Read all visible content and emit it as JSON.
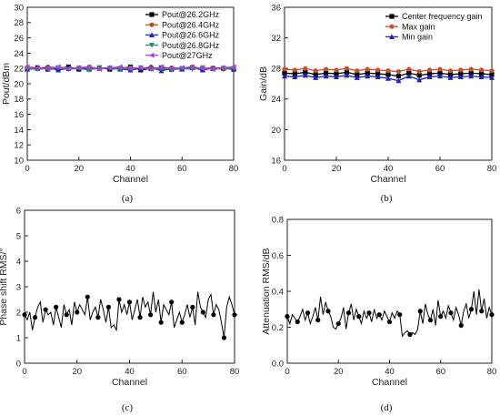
{
  "figure_labels": [
    "(a)",
    "(b)",
    "(c)",
    "(d)"
  ],
  "chart_data": [
    {
      "type": "line",
      "panel": "(a)",
      "xlabel": "Channel",
      "ylabel": "Pout/dBm",
      "xlim": [
        0,
        80
      ],
      "ylim": [
        10,
        30
      ],
      "xticks": [
        0,
        20,
        40,
        60,
        80
      ],
      "yticks": [
        10,
        12,
        14,
        16,
        18,
        20,
        22,
        24,
        26,
        28,
        30
      ],
      "legend_position": "top-right",
      "x": [
        0,
        4,
        8,
        12,
        16,
        20,
        24,
        28,
        32,
        36,
        40,
        44,
        48,
        52,
        56,
        60,
        64,
        68,
        72,
        76,
        80
      ],
      "series": [
        {
          "name": "Pout@26.2GHz",
          "color": "#000000",
          "marker": "square",
          "values": [
            22.0,
            22.1,
            21.9,
            22.0,
            22.2,
            21.9,
            22.0,
            22.1,
            21.9,
            22.0,
            22.2,
            21.8,
            22.0,
            22.1,
            21.9,
            22.0,
            22.1,
            21.9,
            22.0,
            22.0,
            21.9
          ]
        },
        {
          "name": "Pout@26.4GHz",
          "color": "#b5531d",
          "marker": "circle",
          "values": [
            22.1,
            22.0,
            22.2,
            22.1,
            21.9,
            22.1,
            22.2,
            22.0,
            22.1,
            21.9,
            22.1,
            22.0,
            22.2,
            21.9,
            22.1,
            22.0,
            22.2,
            22.0,
            22.1,
            21.9,
            22.1
          ]
        },
        {
          "name": "Pout@26.6GHz",
          "color": "#2323c8",
          "marker": "triangle-up",
          "values": [
            21.9,
            22.0,
            22.1,
            21.8,
            22.0,
            22.1,
            21.9,
            22.0,
            22.1,
            21.9,
            21.8,
            22.0,
            22.1,
            21.7,
            22.0,
            21.9,
            22.1,
            21.8,
            22.0,
            22.1,
            21.9
          ]
        },
        {
          "name": "Pout@26.8GHz",
          "color": "#2a8a6a",
          "marker": "triangle-down",
          "values": [
            22.0,
            21.9,
            22.0,
            22.1,
            21.9,
            22.0,
            21.8,
            22.1,
            22.0,
            21.9,
            22.0,
            22.1,
            21.9,
            22.0,
            21.8,
            22.0,
            21.9,
            22.1,
            21.9,
            22.0,
            22.0
          ]
        },
        {
          "name": "Pout@27GHz",
          "color": "#b040d8",
          "marker": "triangle-left",
          "values": [
            22.2,
            22.1,
            21.9,
            22.2,
            22.0,
            22.1,
            22.2,
            21.9,
            22.1,
            22.2,
            22.0,
            22.1,
            21.9,
            22.2,
            22.0,
            22.1,
            22.2,
            22.0,
            21.9,
            22.1,
            22.2
          ]
        }
      ]
    },
    {
      "type": "line",
      "panel": "(b)",
      "xlabel": "Channel",
      "ylabel": "Gain/dB",
      "xlim": [
        0,
        80
      ],
      "ylim": [
        16,
        36
      ],
      "xticks": [
        0,
        20,
        40,
        60,
        80
      ],
      "yticks": [
        16,
        20,
        24,
        28,
        32,
        36
      ],
      "legend_position": "top-right",
      "x": [
        0,
        4,
        8,
        12,
        16,
        20,
        24,
        28,
        32,
        36,
        40,
        44,
        48,
        52,
        56,
        60,
        64,
        68,
        72,
        76,
        80
      ],
      "series": [
        {
          "name": "Center frequency gain",
          "color": "#000000",
          "marker": "square",
          "values": [
            27.4,
            27.3,
            27.5,
            27.2,
            27.4,
            27.3,
            27.5,
            27.2,
            27.4,
            27.3,
            27.2,
            27.0,
            27.4,
            27.1,
            27.3,
            27.4,
            27.2,
            27.3,
            27.4,
            27.3,
            27.2
          ]
        },
        {
          "name": "Max gain",
          "color": "#c8502a",
          "marker": "circle",
          "values": [
            27.9,
            27.8,
            28.0,
            27.7,
            27.9,
            27.8,
            28.0,
            27.7,
            27.9,
            27.8,
            27.7,
            27.6,
            27.9,
            27.6,
            27.8,
            27.9,
            27.7,
            27.8,
            27.9,
            27.8,
            27.7
          ]
        },
        {
          "name": "Min gain",
          "color": "#2020c0",
          "marker": "triangle-up",
          "values": [
            27.0,
            26.9,
            27.1,
            26.8,
            27.0,
            26.9,
            27.1,
            26.8,
            27.0,
            26.9,
            26.7,
            26.4,
            27.0,
            26.5,
            26.9,
            27.0,
            26.8,
            26.9,
            27.0,
            26.9,
            26.8
          ]
        }
      ]
    },
    {
      "type": "line",
      "panel": "(c)",
      "xlabel": "Channel",
      "ylabel": "Phase shift RMS/°",
      "xlim": [
        0,
        80
      ],
      "ylim": [
        0,
        6
      ],
      "xticks": [
        0,
        20,
        40,
        60,
        80
      ],
      "yticks": [
        0,
        1,
        2,
        3,
        4,
        5,
        6
      ],
      "legend_position": "none",
      "series": [
        {
          "color": "#000000",
          "marker": "circle",
          "x": [
            0,
            1,
            2,
            3,
            4,
            5,
            6,
            7,
            8,
            9,
            10,
            11,
            12,
            13,
            14,
            15,
            16,
            17,
            18,
            19,
            20,
            21,
            22,
            23,
            24,
            25,
            26,
            27,
            28,
            29,
            30,
            31,
            32,
            33,
            34,
            35,
            36,
            37,
            38,
            39,
            40,
            41,
            42,
            43,
            44,
            45,
            46,
            47,
            48,
            49,
            50,
            51,
            52,
            53,
            54,
            55,
            56,
            57,
            58,
            59,
            60,
            61,
            62,
            63,
            64,
            65,
            66,
            67,
            68,
            69,
            70,
            71,
            72,
            73,
            74,
            75,
            76,
            77,
            78,
            79,
            80
          ],
          "values": [
            1.9,
            1.7,
            2.0,
            1.3,
            1.8,
            2.2,
            2.4,
            1.6,
            2.1,
            1.9,
            2.0,
            1.5,
            2.2,
            1.8,
            1.4,
            2.3,
            1.9,
            2.1,
            1.5,
            2.4,
            2.0,
            2.3,
            2.1,
            1.9,
            2.6,
            1.7,
            2.0,
            2.2,
            1.8,
            2.5,
            2.1,
            1.6,
            2.2,
            1.4,
            1.5,
            1.3,
            2.5,
            2.0,
            2.3,
            1.9,
            2.4,
            1.7,
            2.1,
            2.5,
            1.8,
            2.6,
            2.2,
            2.4,
            1.9,
            2.8,
            2.0,
            2.5,
            1.6,
            2.3,
            2.1,
            1.9,
            2.4,
            1.4,
            1.7,
            2.0,
            1.6,
            1.9,
            2.3,
            1.8,
            2.2,
            1.5,
            2.8,
            2.2,
            2.0,
            1.8,
            2.5,
            2.7,
            1.9,
            2.3,
            2.1,
            1.6,
            1.0,
            2.2,
            2.6,
            2.3,
            1.9
          ]
        }
      ]
    },
    {
      "type": "line",
      "panel": "(d)",
      "xlabel": "Channel",
      "ylabel": "Attenuation RMS/dB",
      "xlim": [
        0,
        80
      ],
      "ylim": [
        0.0,
        0.8
      ],
      "xticks": [
        0,
        20,
        40,
        60,
        80
      ],
      "yticks": [
        0.0,
        0.2,
        0.4,
        0.6,
        0.8
      ],
      "legend_position": "none",
      "series": [
        {
          "color": "#000000",
          "marker": "circle",
          "x": [
            0,
            1,
            2,
            3,
            4,
            5,
            6,
            7,
            8,
            9,
            10,
            11,
            12,
            13,
            14,
            15,
            16,
            17,
            18,
            19,
            20,
            21,
            22,
            23,
            24,
            25,
            26,
            27,
            28,
            29,
            30,
            31,
            32,
            33,
            34,
            35,
            36,
            37,
            38,
            39,
            40,
            41,
            42,
            43,
            44,
            45,
            46,
            47,
            48,
            49,
            50,
            51,
            52,
            53,
            54,
            55,
            56,
            57,
            58,
            59,
            60,
            61,
            62,
            63,
            64,
            65,
            66,
            67,
            68,
            69,
            70,
            71,
            72,
            73,
            74,
            75,
            76,
            77,
            78,
            79,
            80
          ],
          "values": [
            0.26,
            0.22,
            0.27,
            0.25,
            0.23,
            0.26,
            0.3,
            0.24,
            0.28,
            0.22,
            0.26,
            0.31,
            0.24,
            0.37,
            0.27,
            0.34,
            0.29,
            0.26,
            0.2,
            0.19,
            0.22,
            0.25,
            0.31,
            0.19,
            0.28,
            0.33,
            0.24,
            0.3,
            0.26,
            0.22,
            0.29,
            0.25,
            0.28,
            0.23,
            0.3,
            0.25,
            0.27,
            0.24,
            0.29,
            0.26,
            0.23,
            0.28,
            0.25,
            0.29,
            0.27,
            0.15,
            0.17,
            0.18,
            0.16,
            0.17,
            0.16,
            0.19,
            0.29,
            0.22,
            0.33,
            0.27,
            0.24,
            0.3,
            0.21,
            0.35,
            0.26,
            0.29,
            0.25,
            0.32,
            0.28,
            0.24,
            0.31,
            0.27,
            0.21,
            0.29,
            0.33,
            0.25,
            0.3,
            0.4,
            0.27,
            0.41,
            0.29,
            0.36,
            0.25,
            0.31,
            0.27
          ]
        }
      ]
    }
  ]
}
